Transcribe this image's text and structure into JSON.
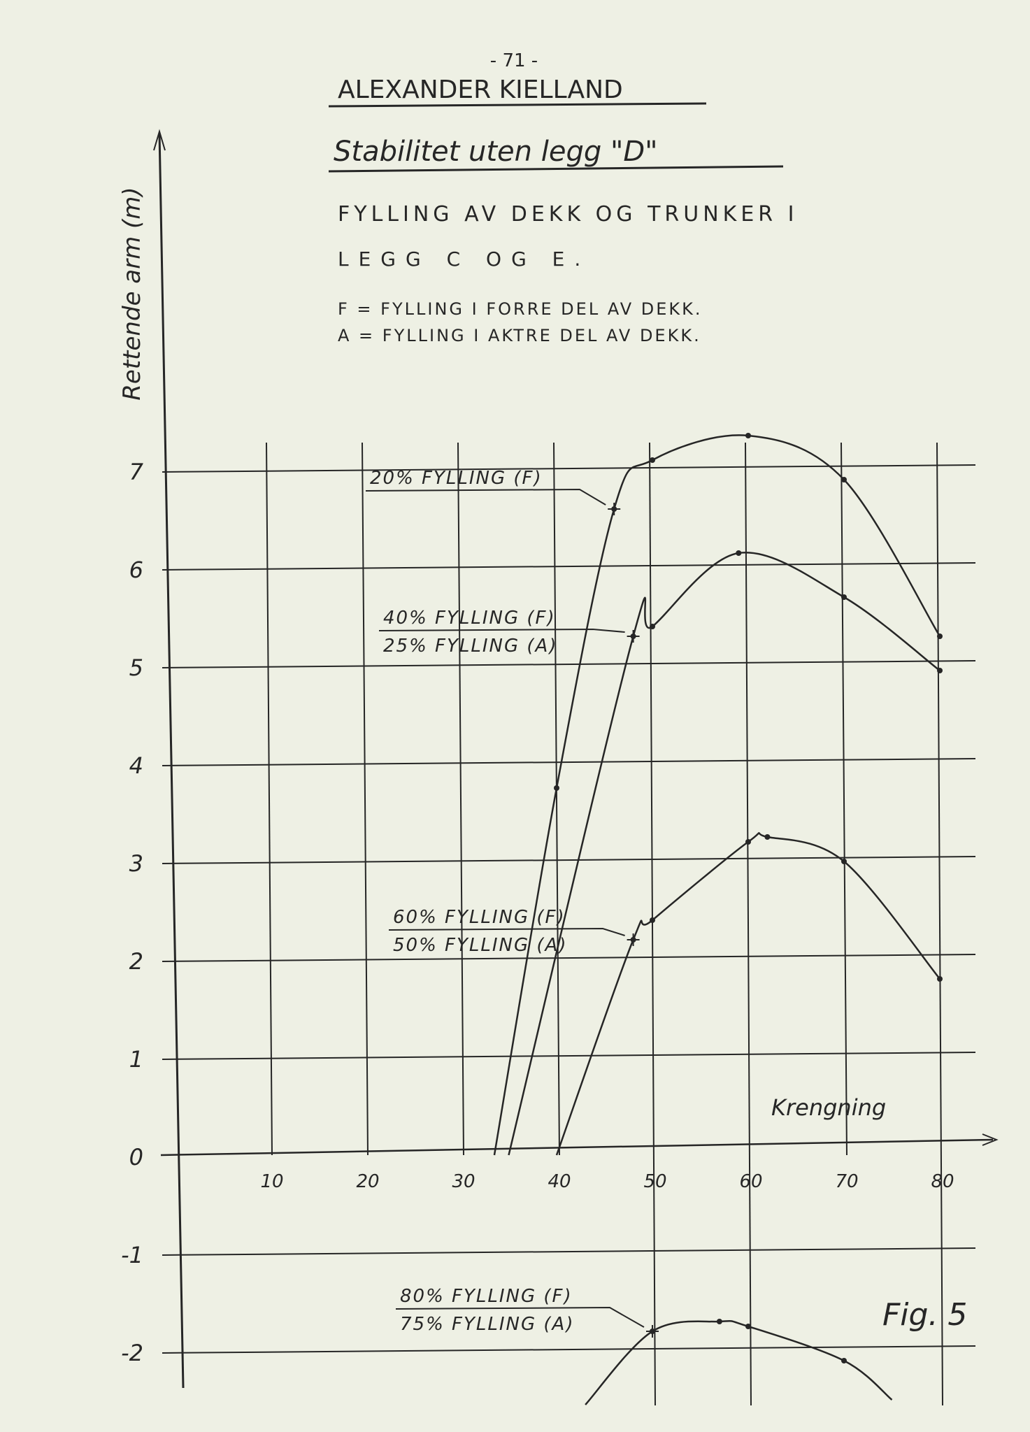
{
  "page": {
    "page_number": "- 71 -",
    "title": "ALEXANDER KIELLAND",
    "subtitle": "Stabilitet uten legg \"D\"",
    "description_line1": "FYLLING AV DEKK OG TRUNKER I",
    "description_line2": "LEGG C OG E.",
    "note_f": "F = FYLLING I FORRE DEL AV DEKK.",
    "note_a": "A = FYLLING I AKTRE DEL AV DEKK.",
    "figure_label": "Fig. 5"
  },
  "colors": {
    "paper": "#eef0e4",
    "ink": "#262626"
  },
  "chart_data": {
    "type": "line",
    "xlabel": "Krengning",
    "ylabel": "Rettende arm (m)",
    "xlim": [
      0,
      85
    ],
    "ylim": [
      -2.5,
      7.5
    ],
    "grid": true,
    "xticks": [
      "10",
      "20",
      "30",
      "40",
      "50",
      "60",
      "70",
      "80"
    ],
    "yticks": [
      "7",
      "6",
      "5",
      "4",
      "3",
      "2",
      "1",
      "0",
      "-1",
      "-2"
    ],
    "series": [
      {
        "labels": [
          "20% FYLLING (F)"
        ],
        "points": [
          [
            33.5,
            0
          ],
          [
            40,
            3.75
          ],
          [
            46,
            6.6
          ],
          [
            50,
            7.1
          ],
          [
            60,
            7.35
          ],
          [
            70,
            6.9
          ],
          [
            80,
            5.3
          ]
        ],
        "label_marker": [
          46,
          6.6
        ]
      },
      {
        "labels": [
          "40% FYLLING (F)",
          "25% FYLLING (A)"
        ],
        "points": [
          [
            35,
            0
          ],
          [
            48,
            5.3
          ],
          [
            50,
            5.4
          ],
          [
            59,
            6.15
          ],
          [
            70,
            5.7
          ],
          [
            80,
            4.95
          ]
        ],
        "label_marker": [
          48,
          5.3
        ]
      },
      {
        "labels": [
          "60% FYLLING (F)",
          "50% FYLLING (A)"
        ],
        "points": [
          [
            40,
            0
          ],
          [
            48,
            2.2
          ],
          [
            50,
            2.4
          ],
          [
            60,
            3.2
          ],
          [
            62,
            3.25
          ],
          [
            70,
            3.0
          ],
          [
            80,
            1.8
          ]
        ],
        "label_marker": [
          48,
          2.2
        ]
      },
      {
        "labels": [
          "80% FYLLING (F)",
          "75% FYLLING (A)"
        ],
        "points": [
          [
            43,
            -2.55
          ],
          [
            50,
            -1.8
          ],
          [
            57,
            -1.7
          ],
          [
            60,
            -1.75
          ],
          [
            70,
            -2.1
          ],
          [
            75,
            -2.5
          ]
        ],
        "label_marker": [
          50,
          -1.8
        ]
      }
    ]
  }
}
